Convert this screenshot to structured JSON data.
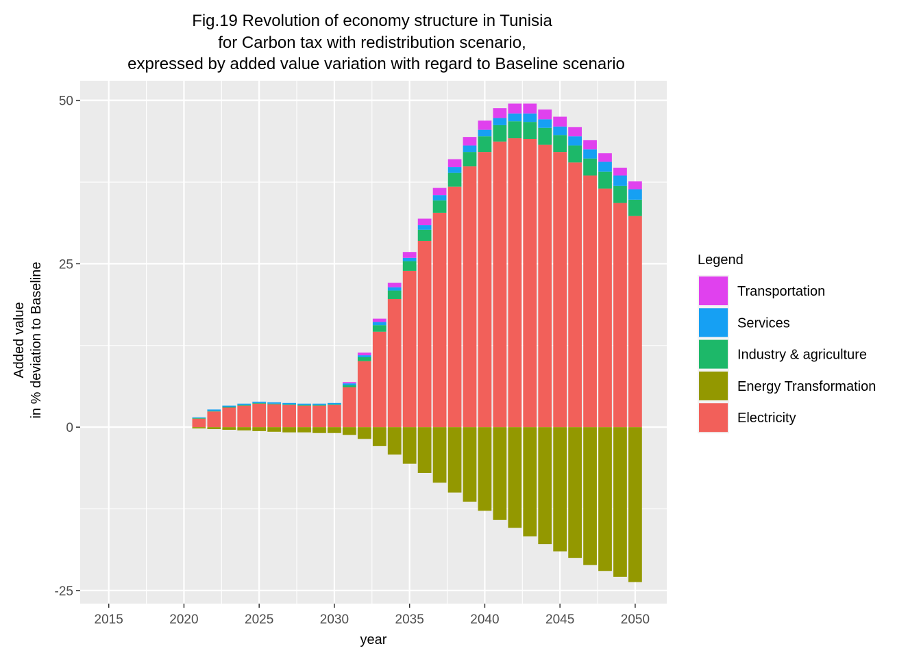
{
  "chart_data": {
    "type": "bar",
    "stacked": true,
    "title_lines": [
      "Fig.19 Revolution of economy structure in Tunisia",
      "for Carbon tax with redistribution scenario,",
      "expressed by added value variation with regard to Baseline scenario"
    ],
    "xlabel": "year",
    "ylabel_lines": [
      "Added value",
      "in % deviation to Baseline"
    ],
    "xlim": [
      2013.1,
      2052.1
    ],
    "ylim": [
      -27,
      53
    ],
    "x_ticks": [
      2015,
      2020,
      2025,
      2030,
      2035,
      2040,
      2045,
      2050
    ],
    "y_ticks": [
      -25,
      0,
      25,
      50
    ],
    "y_tick_labels": [
      "-25",
      "0",
      "25",
      "50"
    ],
    "grid": true,
    "legend_title": "Legend",
    "legend_position": "right",
    "x": [
      2021,
      2022,
      2023,
      2024,
      2025,
      2026,
      2027,
      2028,
      2029,
      2030,
      2031,
      2032,
      2033,
      2034,
      2035,
      2036,
      2037,
      2038,
      2039,
      2040,
      2041,
      2042,
      2043,
      2044,
      2045,
      2046,
      2047,
      2048,
      2049,
      2050
    ],
    "series": [
      {
        "name": "Transportation",
        "color": "#E041EE",
        "values": [
          0,
          0,
          0,
          0,
          0,
          0,
          0,
          0,
          0,
          0,
          0.2,
          0.4,
          0.5,
          0.7,
          0.9,
          1.0,
          1.1,
          1.2,
          1.3,
          1.4,
          1.5,
          1.5,
          1.5,
          1.5,
          1.5,
          1.4,
          1.4,
          1.3,
          1.2,
          1.2
        ]
      },
      {
        "name": "Services",
        "color": "#16A0F3",
        "values": [
          0.1,
          0.2,
          0.2,
          0.2,
          0.2,
          0.2,
          0.2,
          0.2,
          0.2,
          0.2,
          0.3,
          0.3,
          0.5,
          0.5,
          0.5,
          0.7,
          0.8,
          0.9,
          1.0,
          1.0,
          1.1,
          1.2,
          1.3,
          1.3,
          1.3,
          1.4,
          1.4,
          1.5,
          1.6,
          1.6
        ]
      },
      {
        "name": "Industry & agriculture",
        "color": "#1DB869",
        "values": [
          0.1,
          0.1,
          0.1,
          0.1,
          0.1,
          0.1,
          0.1,
          0.1,
          0.1,
          0.1,
          0.3,
          0.6,
          1.0,
          1.3,
          1.5,
          1.7,
          1.9,
          2.1,
          2.2,
          2.4,
          2.5,
          2.6,
          2.6,
          2.6,
          2.6,
          2.6,
          2.6,
          2.6,
          2.6,
          2.5
        ]
      },
      {
        "name": "Energy Transformation",
        "color": "#939800",
        "values": [
          -0.2,
          -0.3,
          -0.4,
          -0.5,
          -0.6,
          -0.7,
          -0.8,
          -0.8,
          -0.9,
          -0.9,
          -1.2,
          -1.8,
          -2.9,
          -4.2,
          -5.6,
          -7.0,
          -8.5,
          -10.0,
          -11.4,
          -12.8,
          -14.2,
          -15.4,
          -16.7,
          -17.9,
          -19.0,
          -20.0,
          -21.1,
          -22.0,
          -22.9,
          -23.7
        ]
      },
      {
        "name": "Electricity",
        "color": "#F2605A",
        "values": [
          1.3,
          2.4,
          3.0,
          3.3,
          3.6,
          3.5,
          3.4,
          3.3,
          3.3,
          3.4,
          6.1,
          10.1,
          14.6,
          19.6,
          23.9,
          28.5,
          32.8,
          36.8,
          39.9,
          42.1,
          43.7,
          44.2,
          44.1,
          43.2,
          42.1,
          40.5,
          38.5,
          36.5,
          34.3,
          32.3
        ]
      }
    ],
    "legend_order": [
      "Transportation",
      "Services",
      "Industry & agriculture",
      "Energy Transformation",
      "Electricity"
    ]
  }
}
